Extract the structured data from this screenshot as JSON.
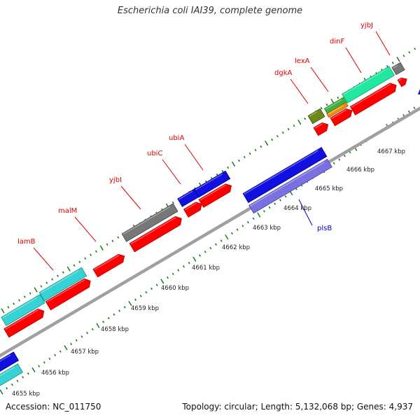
{
  "title": "Escherichia coli IAI39, complete genome",
  "footer": {
    "accession": "Accession: NC_011750",
    "summary": "Topology: circular; Length: 5,132,068 bp; Genes: 4,937"
  },
  "colors": {
    "backbone": "#9a9a9a",
    "tick": "#1a7a1a",
    "forward_label": "#dd0000",
    "reverse_label": "#0000cc",
    "kbp_text": "#222222"
  },
  "kbp_ticks": [
    {
      "label": "4655 kbp"
    },
    {
      "label": "4656 kbp"
    },
    {
      "label": "4657 kbp"
    },
    {
      "label": "4658 kbp"
    },
    {
      "label": "4659 kbp"
    },
    {
      "label": "4660 kbp"
    },
    {
      "label": "4661 kbp"
    },
    {
      "label": "4662 kbp"
    },
    {
      "label": "4663 kbp"
    },
    {
      "label": "4664 kbp"
    },
    {
      "label": "4665 kbp"
    },
    {
      "label": "4666 kbp"
    },
    {
      "label": "4667 kbp"
    }
  ],
  "gene_labels": [
    {
      "name": "lamB",
      "strand": "forward"
    },
    {
      "name": "malM",
      "strand": "forward"
    },
    {
      "name": "yjbI",
      "strand": "forward"
    },
    {
      "name": "ubiC",
      "strand": "forward"
    },
    {
      "name": "ubiA",
      "strand": "forward"
    },
    {
      "name": "dgkA",
      "strand": "forward"
    },
    {
      "name": "lexA",
      "strand": "forward"
    },
    {
      "name": "dinF",
      "strand": "forward"
    },
    {
      "name": "yjbJ",
      "strand": "forward"
    },
    {
      "name": "plsB",
      "strand": "reverse"
    }
  ],
  "features": [
    {
      "type": "CDS",
      "color": "#ff0000",
      "dark": "#b00000"
    },
    {
      "type": "gene",
      "color": "#35d3d3",
      "dark": "#1a8f8f"
    },
    {
      "type": "gene",
      "color": "#777777",
      "dark": "#444444"
    },
    {
      "type": "gene",
      "color": "#1010e0",
      "dark": "#00008a"
    },
    {
      "type": "gene",
      "color": "#7a70e0",
      "dark": "#4a40a8"
    },
    {
      "type": "gene",
      "color": "#6b8a1a",
      "dark": "#3d5210"
    },
    {
      "type": "gene",
      "color": "#3cb43c",
      "dark": "#237023"
    },
    {
      "type": "gene",
      "color": "#f09010",
      "dark": "#a05a00"
    },
    {
      "type": "gene",
      "color": "#20e8a0",
      "dark": "#10a070"
    }
  ]
}
